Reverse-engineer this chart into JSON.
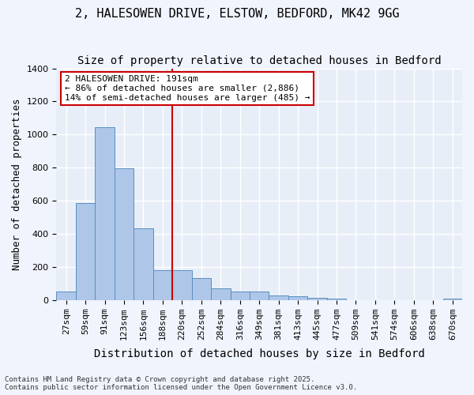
{
  "title1": "2, HALESOWEN DRIVE, ELSTOW, BEDFORD, MK42 9GG",
  "title2": "Size of property relative to detached houses in Bedford",
  "xlabel": "Distribution of detached houses by size in Bedford",
  "ylabel": "Number of detached properties",
  "categories": [
    "27sqm",
    "59sqm",
    "91sqm",
    "123sqm",
    "156sqm",
    "188sqm",
    "220sqm",
    "252sqm",
    "284sqm",
    "316sqm",
    "349sqm",
    "381sqm",
    "413sqm",
    "445sqm",
    "477sqm",
    "509sqm",
    "541sqm",
    "574sqm",
    "606sqm",
    "638sqm",
    "670sqm"
  ],
  "values": [
    50,
    585,
    1045,
    795,
    435,
    180,
    180,
    130,
    70,
    50,
    50,
    25,
    20,
    15,
    10,
    0,
    0,
    0,
    0,
    0,
    10
  ],
  "bar_color": "#aec6e8",
  "bar_edge_color": "#5a8fc0",
  "bg_color": "#e8eef8",
  "grid_color": "#ffffff",
  "vline_x": 5.5,
  "vline_color": "#cc0000",
  "annotation_text": "2 HALESOWEN DRIVE: 191sqm\n← 86% of detached houses are smaller (2,886)\n14% of semi-detached houses are larger (485) →",
  "annotation_box_color": "#cc0000",
  "ylim": [
    0,
    1400
  ],
  "yticks": [
    0,
    200,
    400,
    600,
    800,
    1000,
    1200,
    1400
  ],
  "footnote": "Contains HM Land Registry data © Crown copyright and database right 2025.\nContains public sector information licensed under the Open Government Licence v3.0.",
  "title_fontsize": 11,
  "subtitle_fontsize": 10,
  "axis_label_fontsize": 9,
  "tick_fontsize": 8,
  "annot_fontsize": 8
}
